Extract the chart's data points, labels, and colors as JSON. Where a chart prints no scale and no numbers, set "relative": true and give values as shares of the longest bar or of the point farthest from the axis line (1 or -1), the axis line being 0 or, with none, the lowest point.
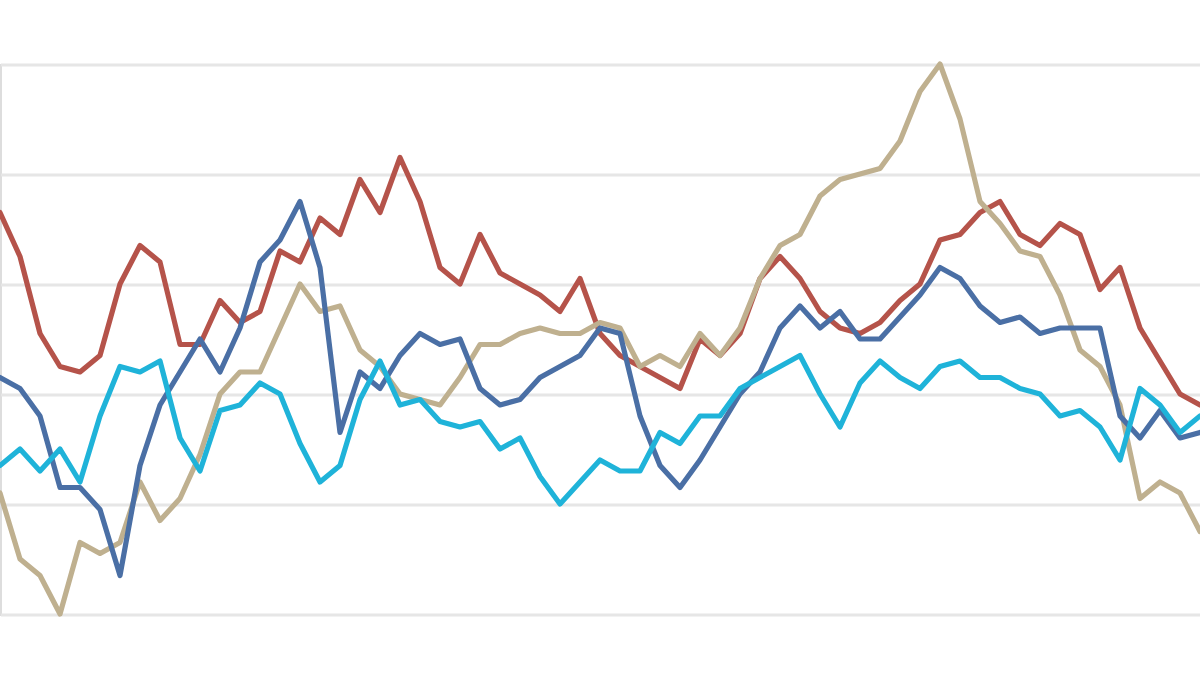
{
  "chart_data": {
    "type": "line",
    "relative": true,
    "grid": "y",
    "tick_labels": false,
    "line_style": "solid",
    "marker": "none",
    "categories": [
      null,
      null,
      null,
      null,
      null,
      null,
      null,
      null,
      null,
      null,
      null,
      null,
      null,
      null,
      null,
      null,
      null,
      null,
      null,
      null,
      null,
      null,
      null,
      null,
      null,
      null,
      null,
      null,
      null,
      null,
      null,
      null,
      null,
      null,
      null,
      null,
      null,
      null,
      null,
      null,
      null,
      null,
      null,
      null,
      null,
      null,
      null,
      null,
      null,
      null,
      null,
      null,
      null,
      null,
      null,
      null,
      null,
      null,
      null,
      null,
      null
    ],
    "series": [
      {
        "color": "#b5534a",
        "values": [
          0.73,
          0.65,
          0.51,
          0.45,
          0.44,
          0.47,
          0.6,
          0.67,
          0.64,
          0.49,
          0.49,
          0.57,
          0.53,
          0.55,
          0.66,
          0.64,
          0.72,
          0.69,
          0.79,
          0.73,
          0.83,
          0.75,
          0.63,
          0.6,
          0.69,
          0.62,
          0.6,
          0.58,
          0.55,
          0.61,
          0.51,
          0.47,
          0.45,
          0.43,
          0.41,
          0.5,
          0.47,
          0.51,
          0.61,
          0.65,
          0.61,
          0.55,
          0.52,
          0.51,
          0.53,
          0.57,
          0.6,
          0.68,
          0.69,
          0.73,
          0.75,
          0.69,
          0.67,
          0.71,
          0.69,
          0.59,
          0.63,
          0.52,
          0.46,
          0.4,
          0.38
        ]
      },
      {
        "color": "#bfb08f",
        "values": [
          0.22,
          0.1,
          0.07,
          0,
          0.13,
          0.11,
          0.13,
          0.24,
          0.17,
          0.21,
          0.29,
          0.4,
          0.44,
          0.44,
          0.52,
          0.6,
          0.55,
          0.56,
          0.48,
          0.45,
          0.4,
          0.39,
          0.38,
          0.43,
          0.49,
          0.49,
          0.51,
          0.52,
          0.51,
          0.51,
          0.53,
          0.52,
          0.45,
          0.47,
          0.45,
          0.51,
          0.47,
          0.52,
          0.61,
          0.67,
          0.69,
          0.76,
          0.79,
          0.8,
          0.81,
          0.86,
          0.95,
          1,
          0.9,
          0.75,
          0.71,
          0.66,
          0.65,
          0.58,
          0.48,
          0.45,
          0.38,
          0.21,
          0.24,
          0.22,
          0.15
        ]
      },
      {
        "color": "#4a6fa5",
        "values": [
          0.43,
          0.41,
          0.36,
          0.23,
          0.23,
          0.19,
          0.07,
          0.27,
          0.38,
          0.44,
          0.5,
          0.44,
          0.52,
          0.64,
          0.68,
          0.75,
          0.63,
          0.33,
          0.44,
          0.41,
          0.47,
          0.51,
          0.49,
          0.5,
          0.41,
          0.38,
          0.39,
          0.43,
          0.45,
          0.47,
          0.52,
          0.51,
          0.36,
          0.27,
          0.23,
          0.28,
          0.34,
          0.4,
          0.44,
          0.52,
          0.56,
          0.52,
          0.55,
          0.5,
          0.5,
          0.54,
          0.58,
          0.63,
          0.61,
          0.56,
          0.53,
          0.54,
          0.51,
          0.52,
          0.52,
          0.52,
          0.36,
          0.32,
          0.37,
          0.32,
          0.33
        ]
      },
      {
        "color": "#1fb3d9",
        "values": [
          0.27,
          0.3,
          0.26,
          0.3,
          0.24,
          0.36,
          0.45,
          0.44,
          0.46,
          0.32,
          0.26,
          0.37,
          0.38,
          0.42,
          0.4,
          0.31,
          0.24,
          0.27,
          0.39,
          0.46,
          0.38,
          0.39,
          0.35,
          0.34,
          0.35,
          0.3,
          0.32,
          0.25,
          0.2,
          0.24,
          0.28,
          0.26,
          0.26,
          0.33,
          0.31,
          0.36,
          0.36,
          0.41,
          0.43,
          0.45,
          0.47,
          0.4,
          0.34,
          0.42,
          0.46,
          0.43,
          0.41,
          0.45,
          0.46,
          0.43,
          0.43,
          0.41,
          0.4,
          0.36,
          0.37,
          0.34,
          0.28,
          0.41,
          0.38,
          0.33,
          0.36
        ]
      }
    ]
  }
}
